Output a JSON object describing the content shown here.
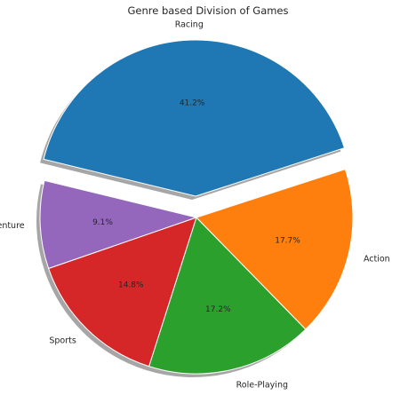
{
  "chart_data": {
    "type": "pie",
    "title": "Genre based Division of Games",
    "categories": [
      "Racing",
      "Adventure",
      "Sports",
      "Role-Playing",
      "Action"
    ],
    "values": [
      41.2,
      9.1,
      14.8,
      17.2,
      17.7
    ],
    "value_labels": [
      "41.2%",
      "9.1%",
      "14.8%",
      "17.2%",
      "17.7%"
    ],
    "colors": [
      "#1f77b4",
      "#9467bd",
      "#d62728",
      "#2ca02c",
      "#ff7f0e"
    ],
    "exploded": [
      "Racing"
    ],
    "shadow": true,
    "legend": "none"
  }
}
